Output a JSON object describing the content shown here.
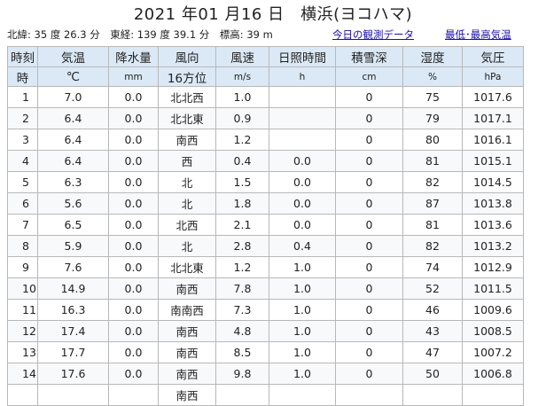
{
  "title": "2021 年01 月16 日　横浜(ヨコハマ)",
  "meta": {
    "info": "北緯:  35 度 26.3 分　東経:  139 度 39.1 分　標高:  39 m",
    "link_today": "今日の観測データ",
    "link_extremes": "最低･最高気温"
  },
  "table": {
    "headers": [
      "時刻",
      "気温",
      "降水量",
      "風向",
      "風速",
      "日照時間",
      "積雪深",
      "湿度",
      "気圧"
    ],
    "units": [
      "時",
      "℃",
      "mm",
      "16方位",
      "m/s",
      "h",
      "cm",
      "%",
      "hPa"
    ],
    "rows": [
      [
        "1",
        "7.0",
        "0.0",
        "北北西",
        "1.0",
        "",
        "0",
        "75",
        "1017.6"
      ],
      [
        "2",
        "6.4",
        "0.0",
        "北北東",
        "0.9",
        "",
        "0",
        "79",
        "1017.1"
      ],
      [
        "3",
        "6.4",
        "0.0",
        "南西",
        "1.2",
        "",
        "0",
        "80",
        "1016.1"
      ],
      [
        "4",
        "6.4",
        "0.0",
        "西",
        "0.4",
        "0.0",
        "0",
        "81",
        "1015.1"
      ],
      [
        "5",
        "6.3",
        "0.0",
        "北",
        "1.5",
        "0.0",
        "0",
        "82",
        "1014.5"
      ],
      [
        "6",
        "5.6",
        "0.0",
        "北",
        "1.8",
        "0.0",
        "0",
        "87",
        "1013.8"
      ],
      [
        "7",
        "6.5",
        "0.0",
        "北西",
        "2.1",
        "0.0",
        "0",
        "81",
        "1013.6"
      ],
      [
        "8",
        "5.9",
        "0.0",
        "北",
        "2.8",
        "0.4",
        "0",
        "82",
        "1013.2"
      ],
      [
        "9",
        "7.6",
        "0.0",
        "北北東",
        "1.2",
        "1.0",
        "0",
        "74",
        "1012.9"
      ],
      [
        "10",
        "14.9",
        "0.0",
        "南西",
        "7.8",
        "1.0",
        "0",
        "52",
        "1011.5"
      ],
      [
        "11",
        "16.3",
        "0.0",
        "南南西",
        "7.3",
        "1.0",
        "0",
        "46",
        "1009.6"
      ],
      [
        "12",
        "17.4",
        "0.0",
        "南西",
        "4.8",
        "1.0",
        "0",
        "43",
        "1008.5"
      ],
      [
        "13",
        "17.7",
        "0.0",
        "南西",
        "8.5",
        "1.0",
        "0",
        "47",
        "1007.2"
      ],
      [
        "14",
        "17.6",
        "0.0",
        "南西",
        "9.8",
        "1.0",
        "0",
        "50",
        "1006.8"
      ],
      [
        "",
        "",
        "",
        "南西",
        "",
        "",
        "",
        "",
        ""
      ]
    ]
  }
}
